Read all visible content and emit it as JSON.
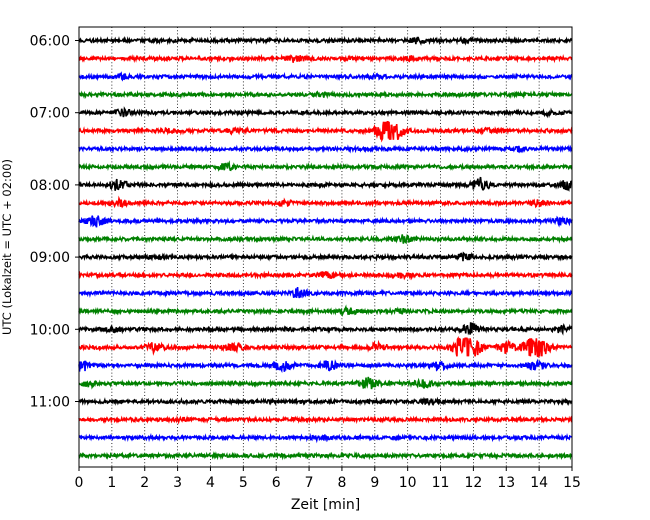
{
  "chart_data": {
    "type": "line",
    "title": "",
    "xlabel": "Zeit  [min]",
    "ylabel": "UTC (Lokalzeit = UTC + 02:00)",
    "xlim": [
      0,
      15
    ],
    "x_ticks": [
      "0",
      "1",
      "2",
      "3",
      "4",
      "5",
      "6",
      "7",
      "8",
      "9",
      "10",
      "11",
      "12",
      "13",
      "14",
      "15"
    ],
    "y_tick_labels": [
      "06:00",
      "07:00",
      "08:00",
      "09:00",
      "10:00",
      "11:00"
    ],
    "row_interval_minutes": 15,
    "start_time": "06:00",
    "grid": "vertical dotted",
    "trace_colors": [
      "#000000",
      "#ff0000",
      "#0000ff",
      "#008000"
    ],
    "series": [
      {
        "start": "06:00",
        "events": [
          {
            "minute": 10.3,
            "amplitude": 0.28
          },
          {
            "minute": 11.8,
            "amplitude": 0.18
          }
        ]
      },
      {
        "start": "06:15",
        "events": [
          {
            "minute": 6.6,
            "amplitude": 0.35
          },
          {
            "minute": 10.0,
            "amplitude": 0.15
          }
        ]
      },
      {
        "start": "06:30",
        "events": [
          {
            "minute": 1.3,
            "amplitude": 0.18
          },
          {
            "minute": 9.0,
            "amplitude": 0.15
          }
        ]
      },
      {
        "start": "06:45",
        "events": [
          {
            "minute": 7.4,
            "amplitude": 0.18
          }
        ]
      },
      {
        "start": "07:00",
        "events": [
          {
            "minute": 1.3,
            "amplitude": 0.35
          },
          {
            "minute": 14.4,
            "amplitude": 0.2
          }
        ]
      },
      {
        "start": "07:15",
        "events": [
          {
            "minute": 2.8,
            "amplitude": 0.3
          },
          {
            "minute": 4.7,
            "amplitude": 0.2
          },
          {
            "minute": 9.45,
            "amplitude": 1.6
          },
          {
            "minute": 12.5,
            "amplitude": 0.25
          }
        ]
      },
      {
        "start": "07:30",
        "events": [
          {
            "minute": 13.3,
            "amplitude": 0.18
          }
        ]
      },
      {
        "start": "07:45",
        "events": [
          {
            "minute": 4.5,
            "amplitude": 0.35
          }
        ]
      },
      {
        "start": "08:00",
        "events": [
          {
            "minute": 1.2,
            "amplitude": 0.55
          },
          {
            "minute": 12.2,
            "amplitude": 0.7
          },
          {
            "minute": 14.9,
            "amplitude": 0.5
          }
        ]
      },
      {
        "start": "08:15",
        "events": [
          {
            "minute": 1.2,
            "amplitude": 0.3
          },
          {
            "minute": 6.2,
            "amplitude": 0.2
          },
          {
            "minute": 14.0,
            "amplitude": 0.3
          }
        ]
      },
      {
        "start": "08:30",
        "events": [
          {
            "minute": 0.5,
            "amplitude": 0.6
          },
          {
            "minute": 14.7,
            "amplitude": 0.3
          }
        ]
      },
      {
        "start": "08:45",
        "events": [
          {
            "minute": 9.9,
            "amplitude": 0.35
          }
        ]
      },
      {
        "start": "09:00",
        "events": [
          {
            "minute": 11.7,
            "amplitude": 0.3
          },
          {
            "minute": 2.3,
            "amplitude": 0.18
          }
        ]
      },
      {
        "start": "09:15",
        "events": [
          {
            "minute": 7.5,
            "amplitude": 0.35
          },
          {
            "minute": 9.8,
            "amplitude": 0.22
          }
        ]
      },
      {
        "start": "09:30",
        "events": [
          {
            "minute": 6.7,
            "amplitude": 0.55
          }
        ]
      },
      {
        "start": "09:45",
        "events": [
          {
            "minute": 8.2,
            "amplitude": 0.3
          },
          {
            "minute": 9.8,
            "amplitude": 0.2
          }
        ]
      },
      {
        "start": "10:00",
        "events": [
          {
            "minute": 11.9,
            "amplitude": 0.6
          },
          {
            "minute": 14.7,
            "amplitude": 0.35
          },
          {
            "minute": 1.0,
            "amplitude": 0.2
          }
        ]
      },
      {
        "start": "10:15",
        "events": [
          {
            "minute": 11.8,
            "amplitude": 1.8
          },
          {
            "minute": 13.9,
            "amplitude": 1.2
          },
          {
            "minute": 2.3,
            "amplitude": 0.45
          },
          {
            "minute": 4.7,
            "amplitude": 0.4
          },
          {
            "minute": 9.1,
            "amplitude": 0.5
          },
          {
            "minute": 13.0,
            "amplitude": 0.6
          }
        ]
      },
      {
        "start": "10:30",
        "events": [
          {
            "minute": 0.1,
            "amplitude": 0.6
          },
          {
            "minute": 6.2,
            "amplitude": 0.6
          },
          {
            "minute": 7.6,
            "amplitude": 0.5
          },
          {
            "minute": 11.0,
            "amplitude": 0.4
          },
          {
            "minute": 13.9,
            "amplitude": 0.4
          }
        ]
      },
      {
        "start": "10:45",
        "events": [
          {
            "minute": 8.8,
            "amplitude": 0.55
          },
          {
            "minute": 10.5,
            "amplitude": 0.4
          },
          {
            "minute": 0.3,
            "amplitude": 0.3
          }
        ]
      },
      {
        "start": "11:00",
        "events": [
          {
            "minute": 10.6,
            "amplitude": 0.2
          }
        ]
      },
      {
        "start": "11:15",
        "events": [
          {
            "minute": 3.2,
            "amplitude": 0.15
          }
        ]
      },
      {
        "start": "11:30",
        "events": [
          {
            "minute": 7.4,
            "amplitude": 0.18
          }
        ]
      },
      {
        "start": "11:45",
        "events": []
      }
    ]
  }
}
